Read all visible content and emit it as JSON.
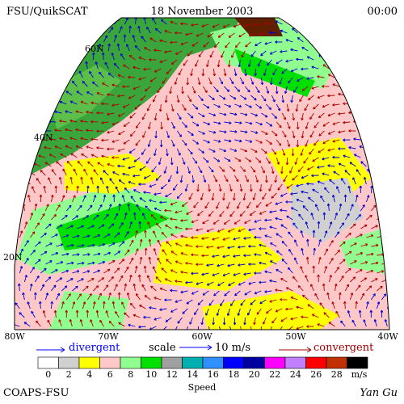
{
  "header": {
    "left": "FSU/QuikSCAT",
    "center": "18 November 2003",
    "right": "00:00"
  },
  "lat_labels": [
    "60N",
    "40N",
    "20N"
  ],
  "lon_labels": [
    "80W",
    "70W",
    "60W",
    "50W",
    "40W"
  ],
  "legend": {
    "divergent": "divergent",
    "scale": "scale",
    "scale_value": "10 m/s",
    "convergent": "convergent"
  },
  "colorbar": {
    "ticks": [
      0,
      2,
      4,
      6,
      8,
      10,
      12,
      14,
      16,
      18,
      20,
      22,
      24,
      26,
      28
    ],
    "unit": "m/s",
    "label": "Speed",
    "colors": [
      "#ffffff",
      "#d0d0d0",
      "#ffff00",
      "#ffc8c8",
      "#90ff90",
      "#00e000",
      "#a0a0a0",
      "#00b0b0",
      "#3090ff",
      "#0000ff",
      "#0000a0",
      "#ff00ff",
      "#c080ff",
      "#ff0000",
      "#c03000",
      "#000000"
    ]
  },
  "footer": {
    "left": "COAPS-FSU",
    "right": "Yan Gu"
  }
}
